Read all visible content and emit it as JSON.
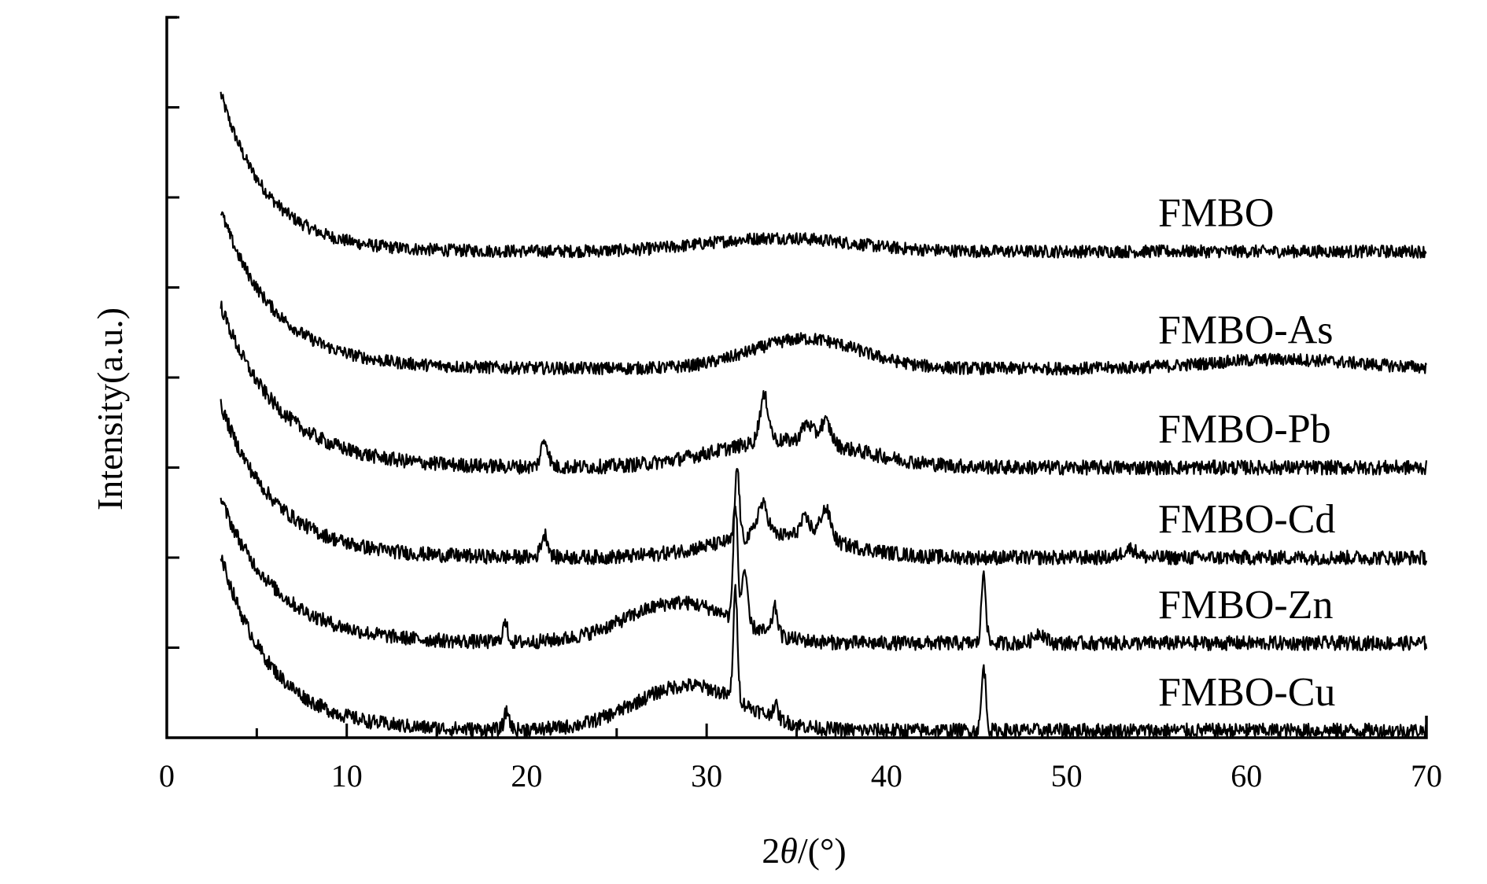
{
  "chart_data": {
    "type": "line",
    "xlabel": "2θ/(°)",
    "xlabel_parts": {
      "pre": "2",
      "italic": "θ",
      "post": "/(°)"
    },
    "ylabel": "Intensity(a.u.)",
    "xlim": [
      0,
      70
    ],
    "x_ticks": [
      0,
      10,
      20,
      30,
      40,
      50,
      60,
      70
    ],
    "x_tick_labels": [
      "0",
      "10",
      "20",
      "30",
      "40",
      "50",
      "60",
      "70"
    ],
    "ylim": [
      0,
      8
    ],
    "y_ticks": [
      1,
      2,
      3,
      4,
      5,
      6,
      7,
      8
    ],
    "y_tick_labels_shown": false,
    "grid": false,
    "legend": "labels-at-right-of-each-trace",
    "x_start": 3,
    "x_end": 70,
    "series": [
      {
        "name": "FMBO",
        "baseline": 5.4,
        "start_height": 1.75,
        "decay_scale": 2.6,
        "tail_slope": 0.0,
        "noise": 0.07,
        "humps": [
          {
            "center": 34.0,
            "width": 4.0,
            "height": 0.15
          }
        ],
        "peaks": []
      },
      {
        "name": "FMBO-As",
        "baseline": 4.1,
        "start_height": 1.75,
        "decay_scale": 3.0,
        "tail_slope": 0.0,
        "noise": 0.07,
        "humps": [
          {
            "center": 35.5,
            "width": 3.0,
            "height": 0.33
          },
          {
            "center": 62.0,
            "width": 4.0,
            "height": 0.1
          }
        ],
        "peaks": []
      },
      {
        "name": "FMBO-Pb",
        "baseline": 3.0,
        "start_height": 1.8,
        "decay_scale": 3.2,
        "tail_slope": 0.0,
        "noise": 0.08,
        "humps": [
          {
            "center": 34.5,
            "width": 4.0,
            "height": 0.3
          }
        ],
        "peaks": [
          {
            "center": 21.0,
            "width": 0.2,
            "height": 0.3
          },
          {
            "center": 33.2,
            "width": 0.25,
            "height": 0.5
          },
          {
            "center": 35.6,
            "width": 0.3,
            "height": 0.2
          },
          {
            "center": 36.6,
            "width": 0.3,
            "height": 0.25
          }
        ]
      },
      {
        "name": "FMBO-Cd",
        "baseline": 2.0,
        "start_height": 1.7,
        "decay_scale": 3.0,
        "tail_slope": 0.0,
        "noise": 0.08,
        "humps": [
          {
            "center": 34.0,
            "width": 3.5,
            "height": 0.25
          }
        ],
        "peaks": [
          {
            "center": 21.0,
            "width": 0.2,
            "height": 0.25
          },
          {
            "center": 31.7,
            "width": 0.12,
            "height": 0.8
          },
          {
            "center": 33.1,
            "width": 0.3,
            "height": 0.35
          },
          {
            "center": 35.5,
            "width": 0.3,
            "height": 0.2
          },
          {
            "center": 36.6,
            "width": 0.3,
            "height": 0.35
          },
          {
            "center": 53.5,
            "width": 0.4,
            "height": 0.1
          }
        ]
      },
      {
        "name": "FMBO-Zn",
        "baseline": 1.05,
        "start_height": 1.6,
        "decay_scale": 3.1,
        "tail_slope": 0.0,
        "noise": 0.08,
        "humps": [
          {
            "center": 28.5,
            "width": 3.0,
            "height": 0.45
          }
        ],
        "peaks": [
          {
            "center": 18.8,
            "width": 0.15,
            "height": 0.2
          },
          {
            "center": 31.6,
            "width": 0.12,
            "height": 1.3
          },
          {
            "center": 32.1,
            "width": 0.15,
            "height": 0.6
          },
          {
            "center": 33.8,
            "width": 0.15,
            "height": 0.3
          },
          {
            "center": 45.4,
            "width": 0.12,
            "height": 0.8
          },
          {
            "center": 48.5,
            "width": 0.3,
            "height": 0.12
          }
        ]
      },
      {
        "name": "FMBO-Cu",
        "baseline": 0.08,
        "start_height": 1.95,
        "decay_scale": 2.8,
        "tail_slope": 0.0,
        "noise": 0.08,
        "humps": [
          {
            "center": 29.0,
            "width": 3.0,
            "height": 0.5
          }
        ],
        "peaks": [
          {
            "center": 18.9,
            "width": 0.15,
            "height": 0.2
          },
          {
            "center": 31.6,
            "width": 0.12,
            "height": 1.2
          },
          {
            "center": 33.8,
            "width": 0.15,
            "height": 0.15
          },
          {
            "center": 45.4,
            "width": 0.12,
            "height": 0.7
          }
        ]
      }
    ]
  }
}
